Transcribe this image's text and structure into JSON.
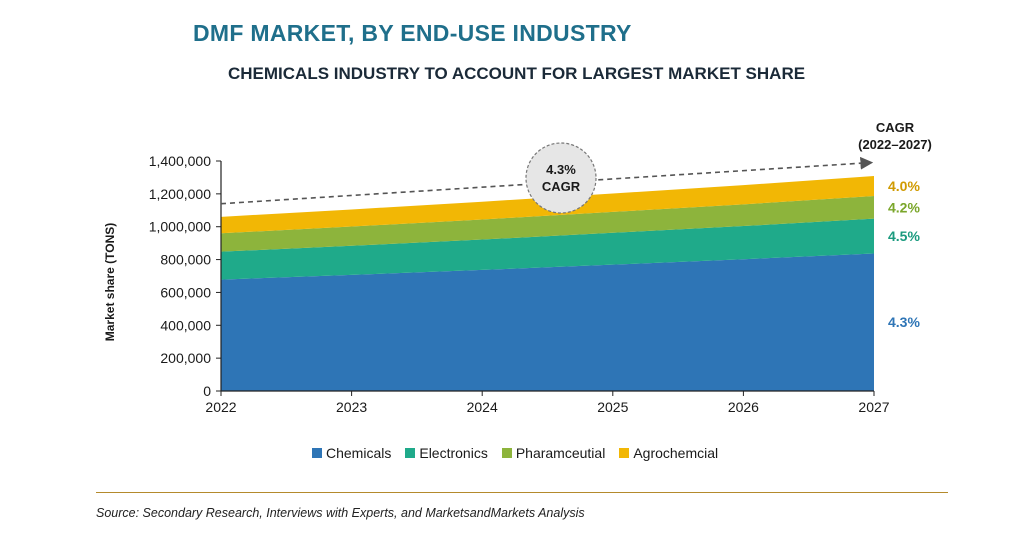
{
  "title": "DMF MARKET, BY END-USE INDUSTRY",
  "subtitle": "CHEMICALS INDUSTRY TO ACCOUNT FOR LARGEST MARKET SHARE",
  "source": "Source: Secondary Research, Interviews with Experts, and MarketsandMarkets Analysis",
  "cagr_header": [
    "CAGR",
    "(2022–2027)"
  ],
  "cagr_bubble": [
    "4.3%",
    "CAGR"
  ],
  "chart_data": {
    "type": "area",
    "stacked": true,
    "x": [
      "2022",
      "2023",
      "2024",
      "2025",
      "2026",
      "2027"
    ],
    "ylabel": "Market share (TONS)",
    "ylim": [
      0,
      1400000
    ],
    "yticks": [
      "0",
      "200,000",
      "400,000",
      "600,000",
      "800,000",
      "1,000,000",
      "1,200,000",
      "1,400,000"
    ],
    "ytick_values": [
      0,
      200000,
      400000,
      600000,
      800000,
      1000000,
      1200000,
      1400000
    ],
    "grid": false,
    "legend_position": "bottom",
    "series": [
      {
        "name": "Chemicals",
        "color": "#2e75b6",
        "cagr": "4.3%",
        "cagr_color": "#2e75b6",
        "values": [
          678000,
          707000,
          737000,
          769000,
          802000,
          837000
        ]
      },
      {
        "name": "Electronics",
        "color": "#1faa8a",
        "cagr": "4.5%",
        "cagr_color": "#1a9a7e",
        "values": [
          170000,
          177000,
          185000,
          194000,
          202000,
          212000
        ]
      },
      {
        "name": "Pharamceutial",
        "color": "#8db43c",
        "cagr": "4.2%",
        "cagr_color": "#7aa62a",
        "values": [
          112000,
          117000,
          122000,
          127000,
          132000,
          138000
        ]
      },
      {
        "name": "Agrochemcial",
        "color": "#f2b705",
        "cagr": "4.0%",
        "cagr_color": "#d09a00",
        "values": [
          100000,
          104000,
          108000,
          112000,
          117000,
          122000
        ]
      }
    ],
    "trend_line": {
      "style": "dashed",
      "start": 1140000,
      "end": 1390000
    }
  }
}
